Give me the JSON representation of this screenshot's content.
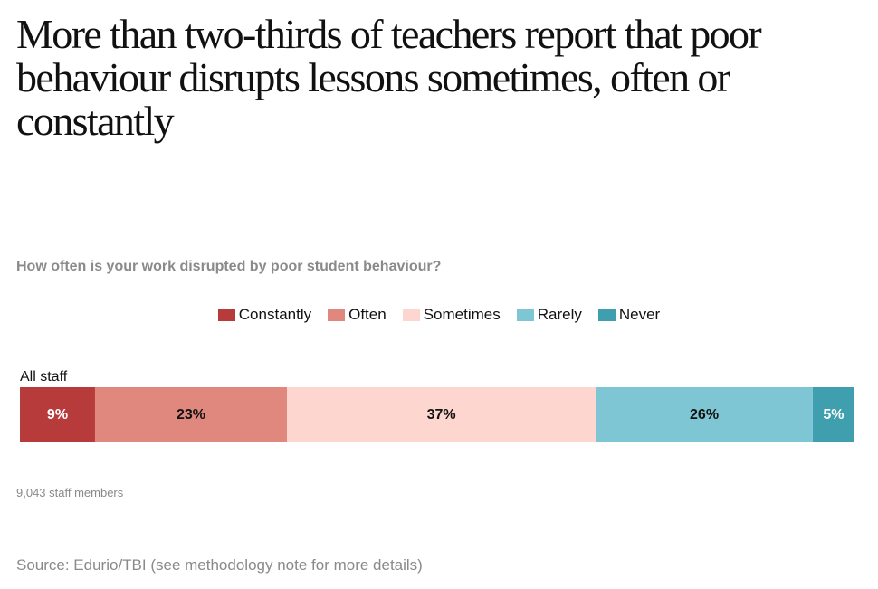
{
  "chart_data": {
    "type": "stacked-bar-horizontal",
    "title": "More than two-thirds of teachers report that poor behaviour disrupts lessons sometimes, often or constantly",
    "subtitle": "How often is your work disrupted by poor student behaviour?",
    "categories": [
      "All staff"
    ],
    "series": [
      {
        "name": "Constantly",
        "color": "#b83b3c",
        "values": [
          9
        ],
        "value_labels": [
          "9%"
        ]
      },
      {
        "name": "Often",
        "color": "#e0887d",
        "values": [
          23
        ],
        "value_labels": [
          "23%"
        ]
      },
      {
        "name": "Sometimes",
        "color": "#fdd6cf",
        "values": [
          37
        ],
        "value_labels": [
          "37%"
        ]
      },
      {
        "name": "Rarely",
        "color": "#7fc6d4",
        "values": [
          26
        ],
        "value_labels": [
          "26%"
        ]
      },
      {
        "name": "Never",
        "color": "#3f9fae",
        "values": [
          5
        ],
        "value_labels": [
          "5%"
        ]
      }
    ],
    "note": "9,043 staff members",
    "source": "Source: Edurio/TBI (see methodology note for more details)"
  }
}
